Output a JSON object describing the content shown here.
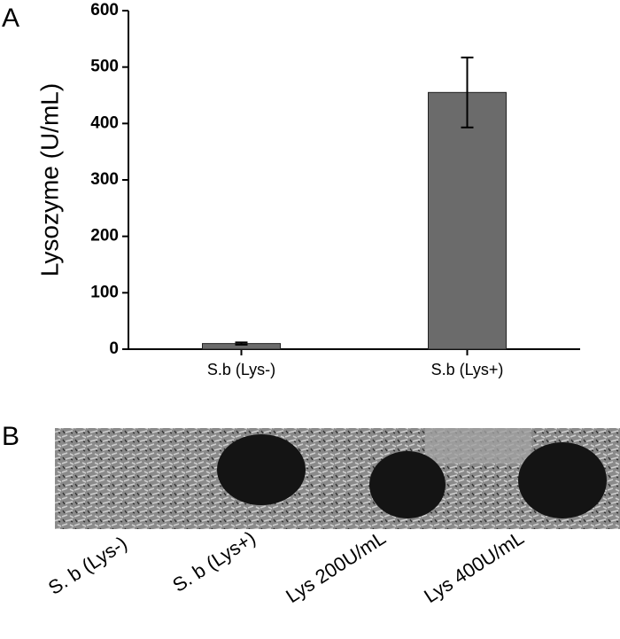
{
  "chart_data": {
    "type": "bar",
    "panel": "A",
    "ylabel": "Lysozyme (U/mL)",
    "categories": [
      "S.b (Lys-)",
      "S.b (Lys+)"
    ],
    "values": [
      10,
      455
    ],
    "errors": [
      2,
      62
    ],
    "color": "#6b6b6b",
    "ylim": [
      0,
      600
    ],
    "yticks": [
      0,
      100,
      200,
      300,
      400,
      500,
      600
    ]
  },
  "image_panel": {
    "panel": "B",
    "labels": [
      "S. b (Lys-)",
      "S. b (Lys+)",
      "Lys 200U/mL",
      "Lys 400U/mL"
    ]
  }
}
